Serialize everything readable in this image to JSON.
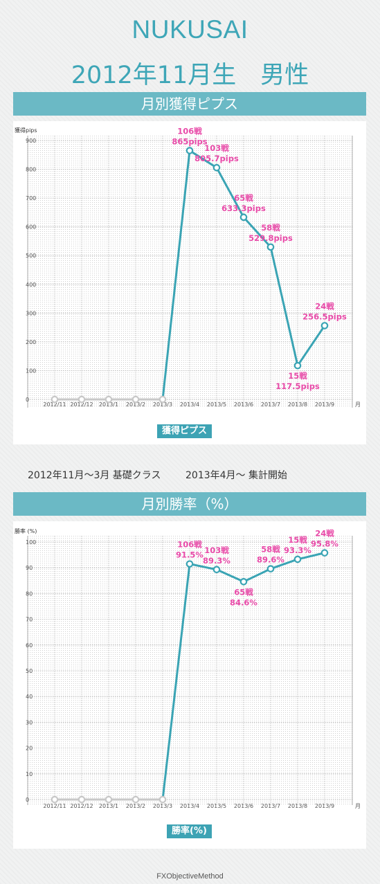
{
  "header": {
    "name": "NUKUSAI",
    "birth": "2012年11月生　男性"
  },
  "section1": {
    "band_title": "月別獲得ピプス",
    "badge": "獲得ピプス"
  },
  "note": {
    "left": "2012年11月〜3月 基礎クラス",
    "right": "2013年4月〜 集計開始"
  },
  "section2": {
    "band_title": "月別勝率（%）",
    "badge": "勝率(%)"
  },
  "footer": "FXObjectiveMethod",
  "colors": {
    "accent": "#3ea6b7",
    "band": "#6bb9c5",
    "line": "#3aa4b4",
    "label": "#e84aa8",
    "zero_line": "#c8c8c8"
  },
  "chart_data": [
    {
      "type": "line",
      "ylabel": "獲得pips",
      "xunit": "月",
      "categories": [
        "2012/11",
        "2012/12",
        "2013/1",
        "2013/2",
        "2013/3",
        "2013/4",
        "2013/5",
        "2013/6",
        "2013/7",
        "2013/8",
        "2013/9"
      ],
      "values": [
        0,
        0,
        0,
        0,
        0,
        865,
        805.7,
        633.3,
        529.8,
        117.5,
        256.5
      ],
      "yticks": [
        0,
        100,
        200,
        300,
        400,
        500,
        600,
        700,
        800,
        900
      ],
      "ylim": [
        0,
        900
      ],
      "grid": true,
      "point_labels": [
        null,
        null,
        null,
        null,
        null,
        {
          "top": "106戦",
          "bottom": "865pips",
          "pos": "above"
        },
        {
          "top": "103戦",
          "bottom": "805.7pips",
          "pos": "above"
        },
        {
          "top": "65戦",
          "bottom": "633.3pips",
          "pos": "above"
        },
        {
          "top": "58戦",
          "bottom": "529.8pips",
          "pos": "above"
        },
        {
          "top": "15戦",
          "bottom": "117.5pips",
          "pos": "below"
        },
        {
          "top": "24戦",
          "bottom": "256.5pips",
          "pos": "above"
        }
      ]
    },
    {
      "type": "line",
      "ylabel": "勝率 (%)",
      "xunit": "月",
      "categories": [
        "2012/11",
        "2012/12",
        "2013/1",
        "2013/2",
        "2013/3",
        "2013/4",
        "2013/5",
        "2013/6",
        "2013/7",
        "2013/8",
        "2013/9"
      ],
      "values": [
        0,
        0,
        0,
        0,
        0,
        91.5,
        89.3,
        84.6,
        89.6,
        93.3,
        95.8
      ],
      "yticks": [
        0,
        10,
        20,
        30,
        40,
        50,
        60,
        70,
        80,
        90,
        100
      ],
      "ylim": [
        0,
        100
      ],
      "grid": true,
      "point_labels": [
        null,
        null,
        null,
        null,
        null,
        {
          "top": "106戦",
          "bottom": "91.5%",
          "pos": "above"
        },
        {
          "top": "103戦",
          "bottom": "89.3%",
          "pos": "above"
        },
        {
          "top": "65戦",
          "bottom": "84.6%",
          "pos": "below"
        },
        {
          "top": "58戦",
          "bottom": "89.6%",
          "pos": "above"
        },
        {
          "top": "15戦",
          "bottom": "93.3%",
          "pos": "above"
        },
        {
          "top": "24戦",
          "bottom": "95.8%",
          "pos": "above"
        }
      ]
    }
  ]
}
